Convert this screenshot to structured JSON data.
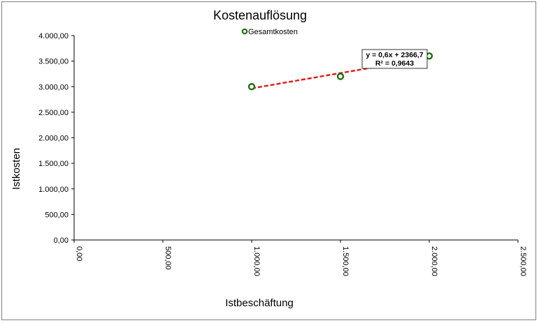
{
  "chart_data": {
    "type": "scatter",
    "title": "Kostenauflösung",
    "xlabel": "Istbeschäftung",
    "ylabel": "Istkosten",
    "xlim": [
      0,
      2500
    ],
    "ylim": [
      0,
      4000
    ],
    "x_ticks": [
      "0,00",
      "500,00",
      "1.000,00",
      "1.500,00",
      "2.000,00",
      "2.500,00"
    ],
    "y_ticks": [
      "0,00",
      "500,00",
      "1.000,00",
      "1.500,00",
      "2.000,00",
      "2.500,00",
      "3.000,00",
      "3.500,00",
      "4.000,00"
    ],
    "grid": false,
    "legend": {
      "position": "top-center",
      "entries": [
        "Gesamtkosten"
      ]
    },
    "series": [
      {
        "name": "Gesamtkosten",
        "x": [
          1000,
          1500,
          2000
        ],
        "y": [
          3000,
          3200,
          3600
        ]
      }
    ],
    "trendline": {
      "type": "linear",
      "slope": 0.6,
      "intercept": 2366.7,
      "x_range": [
        1000,
        2000
      ],
      "equation": "y = 0,6x + 2366,7",
      "r_squared": "R² = 0,9643",
      "color": "#e0201b"
    },
    "marker_stroke": "#1f6e12",
    "marker_fill": "#ffffff"
  }
}
